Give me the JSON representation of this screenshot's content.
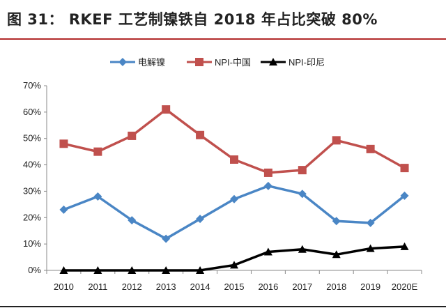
{
  "title": "图 31： RKEF 工艺制镍铁自 2018 年占比突破 80%",
  "chart_data": {
    "type": "line",
    "categories": [
      "2010",
      "2011",
      "2012",
      "2013",
      "2014",
      "2015",
      "2016",
      "2017",
      "2018",
      "2019",
      "2020E"
    ],
    "ylim": [
      0,
      70
    ],
    "yticks": [
      "0%",
      "10%",
      "20%",
      "30%",
      "40%",
      "50%",
      "60%",
      "70%"
    ],
    "legend_position": "top",
    "grid": false,
    "series": [
      {
        "name": "电解镍",
        "color": "#4a86c5",
        "marker": "diamond",
        "values": [
          23,
          28,
          19,
          12,
          19.5,
          27,
          32,
          29,
          18.7,
          18,
          28.3
        ]
      },
      {
        "name": "NPI-中国",
        "color": "#c0504d",
        "marker": "square",
        "values": [
          48,
          45,
          51,
          61,
          51.3,
          42,
          37,
          38,
          49.3,
          46,
          38.8
        ]
      },
      {
        "name": "NPI-印尼",
        "color": "#000000",
        "marker": "triangle",
        "values": [
          0,
          0,
          0,
          0,
          0,
          2,
          7,
          8,
          6,
          8.3,
          9
        ]
      }
    ]
  }
}
